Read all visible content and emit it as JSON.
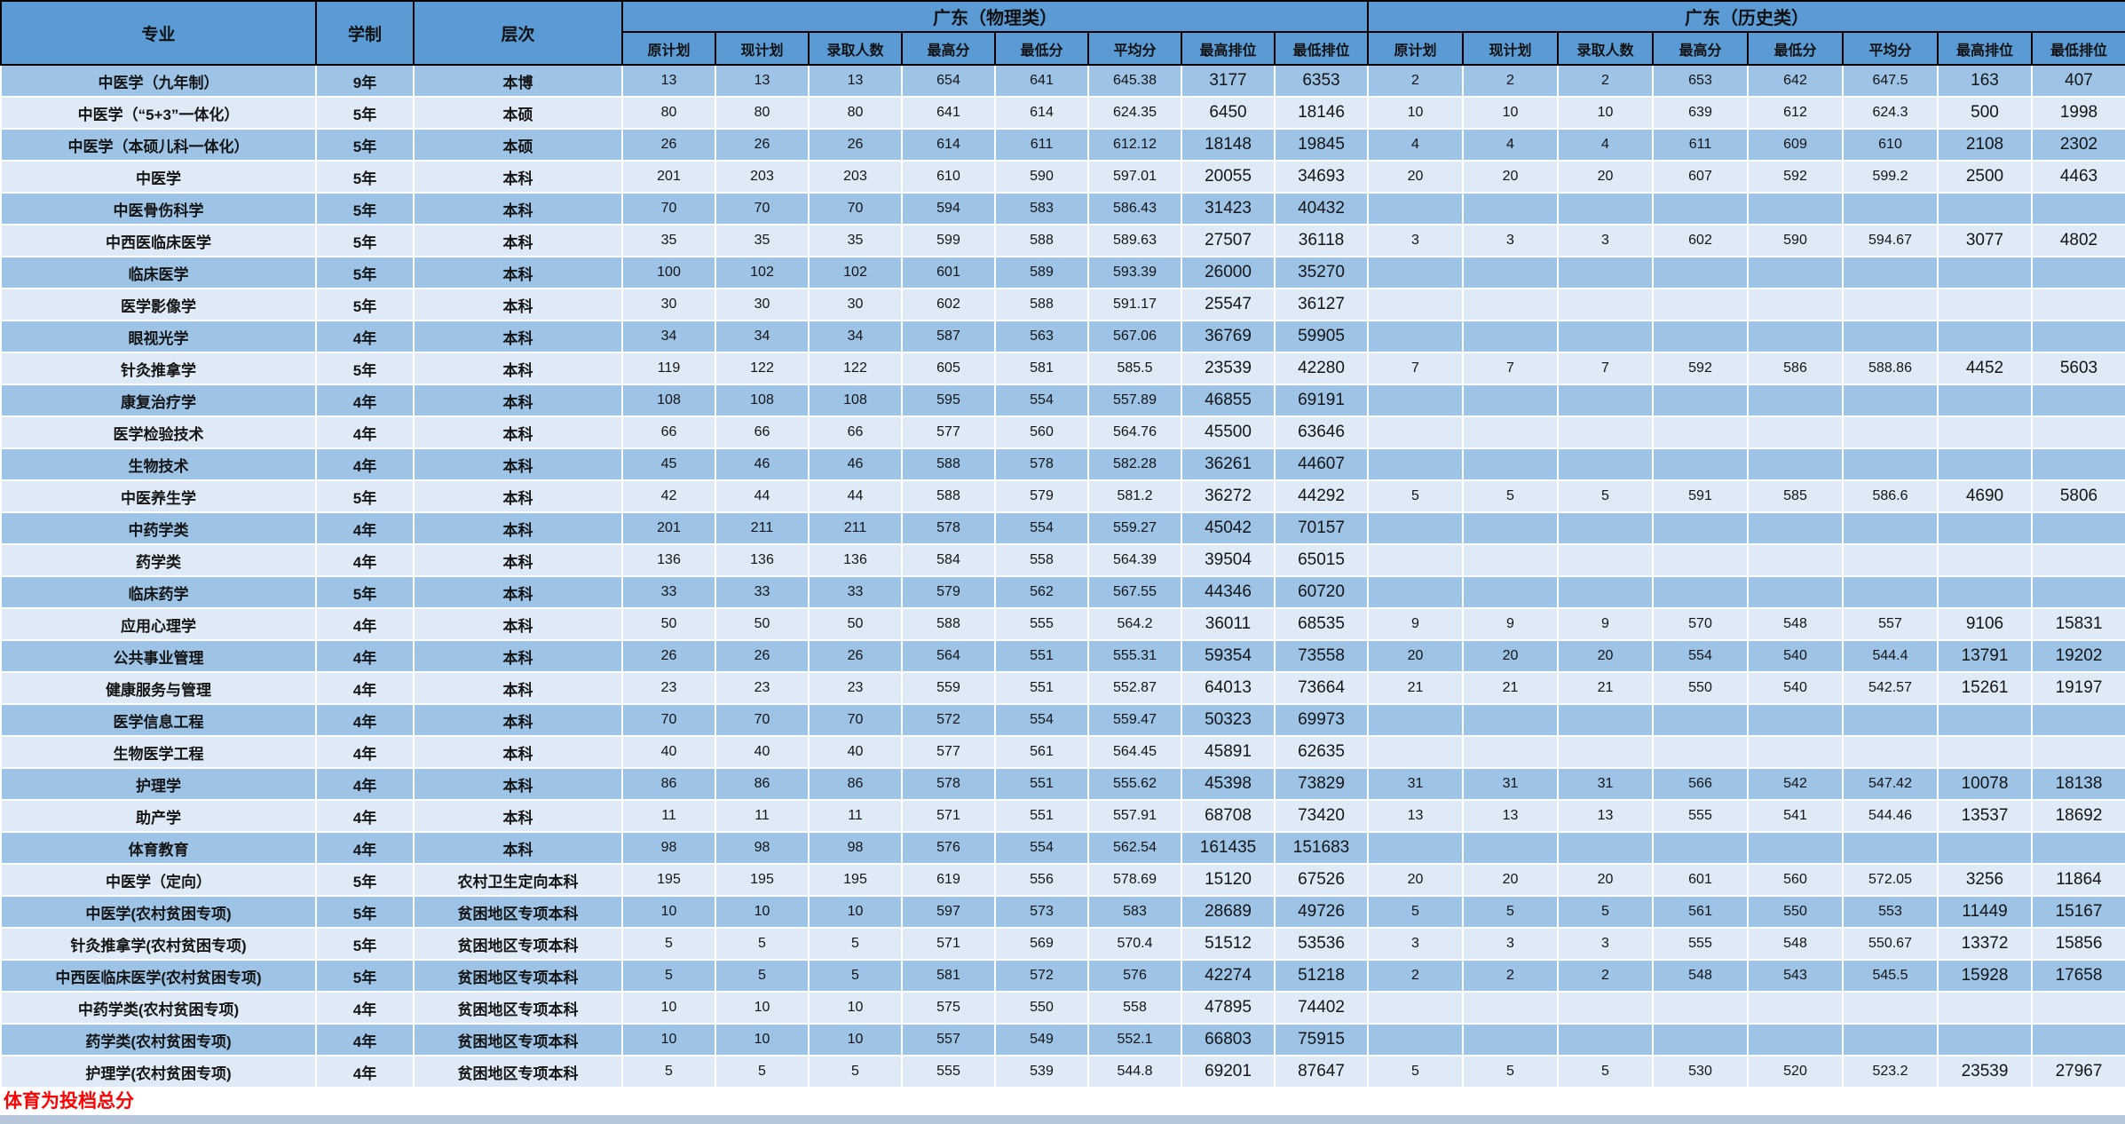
{
  "page": {
    "footnote": "体育为投档总分"
  },
  "colors": {
    "header_bg": "#5b9bd5",
    "row_dark": "#9dc3e6",
    "row_light": "#deebf7",
    "footnote_red": "#ff0000",
    "bottom_strip": "#b7c7da",
    "border_black": "#000000",
    "grid_white": "#ffffff"
  },
  "table": {
    "headers": {
      "major": "专业",
      "duration": "学制",
      "level": "层次",
      "group_physics": "广东（物理类）",
      "group_history": "广东（历史类）"
    },
    "sub_headers": [
      "原计划",
      "现计划",
      "录取人数",
      "最高分",
      "最低分",
      "平均分",
      "最高排位",
      "最低排位"
    ],
    "rows": [
      {
        "major": "中医学（九年制）",
        "duration": "9年",
        "level": "本博",
        "physics": [
          "13",
          "13",
          "13",
          "654",
          "641",
          "645.38",
          "3177",
          "6353"
        ],
        "history": [
          "2",
          "2",
          "2",
          "653",
          "642",
          "647.5",
          "163",
          "407"
        ]
      },
      {
        "major": "中医学（“5+3”一体化）",
        "duration": "5年",
        "level": "本硕",
        "physics": [
          "80",
          "80",
          "80",
          "641",
          "614",
          "624.35",
          "6450",
          "18146"
        ],
        "history": [
          "10",
          "10",
          "10",
          "639",
          "612",
          "624.3",
          "500",
          "1998"
        ]
      },
      {
        "major": "中医学（本硕儿科一体化）",
        "duration": "5年",
        "level": "本硕",
        "physics": [
          "26",
          "26",
          "26",
          "614",
          "611",
          "612.12",
          "18148",
          "19845"
        ],
        "history": [
          "4",
          "4",
          "4",
          "611",
          "609",
          "610",
          "2108",
          "2302"
        ]
      },
      {
        "major": "中医学",
        "duration": "5年",
        "level": "本科",
        "physics": [
          "201",
          "203",
          "203",
          "610",
          "590",
          "597.01",
          "20055",
          "34693"
        ],
        "history": [
          "20",
          "20",
          "20",
          "607",
          "592",
          "599.2",
          "2500",
          "4463"
        ]
      },
      {
        "major": "中医骨伤科学",
        "duration": "5年",
        "level": "本科",
        "physics": [
          "70",
          "70",
          "70",
          "594",
          "583",
          "586.43",
          "31423",
          "40432"
        ],
        "history": [
          "",
          "",
          "",
          "",
          "",
          "",
          "",
          ""
        ]
      },
      {
        "major": "中西医临床医学",
        "duration": "5年",
        "level": "本科",
        "physics": [
          "35",
          "35",
          "35",
          "599",
          "588",
          "589.63",
          "27507",
          "36118"
        ],
        "history": [
          "3",
          "3",
          "3",
          "602",
          "590",
          "594.67",
          "3077",
          "4802"
        ]
      },
      {
        "major": "临床医学",
        "duration": "5年",
        "level": "本科",
        "physics": [
          "100",
          "102",
          "102",
          "601",
          "589",
          "593.39",
          "26000",
          "35270"
        ],
        "history": [
          "",
          "",
          "",
          "",
          "",
          "",
          "",
          ""
        ]
      },
      {
        "major": "医学影像学",
        "duration": "5年",
        "level": "本科",
        "physics": [
          "30",
          "30",
          "30",
          "602",
          "588",
          "591.17",
          "25547",
          "36127"
        ],
        "history": [
          "",
          "",
          "",
          "",
          "",
          "",
          "",
          ""
        ]
      },
      {
        "major": "眼视光学",
        "duration": "4年",
        "level": "本科",
        "physics": [
          "34",
          "34",
          "34",
          "587",
          "563",
          "567.06",
          "36769",
          "59905"
        ],
        "history": [
          "",
          "",
          "",
          "",
          "",
          "",
          "",
          ""
        ]
      },
      {
        "major": "针灸推拿学",
        "duration": "5年",
        "level": "本科",
        "physics": [
          "119",
          "122",
          "122",
          "605",
          "581",
          "585.5",
          "23539",
          "42280"
        ],
        "history": [
          "7",
          "7",
          "7",
          "592",
          "586",
          "588.86",
          "4452",
          "5603"
        ]
      },
      {
        "major": "康复治疗学",
        "duration": "4年",
        "level": "本科",
        "physics": [
          "108",
          "108",
          "108",
          "595",
          "554",
          "557.89",
          "46855",
          "69191"
        ],
        "history": [
          "",
          "",
          "",
          "",
          "",
          "",
          "",
          ""
        ]
      },
      {
        "major": "医学检验技术",
        "duration": "4年",
        "level": "本科",
        "physics": [
          "66",
          "66",
          "66",
          "577",
          "560",
          "564.76",
          "45500",
          "63646"
        ],
        "history": [
          "",
          "",
          "",
          "",
          "",
          "",
          "",
          ""
        ]
      },
      {
        "major": "生物技术",
        "duration": "4年",
        "level": "本科",
        "physics": [
          "45",
          "46",
          "46",
          "588",
          "578",
          "582.28",
          "36261",
          "44607"
        ],
        "history": [
          "",
          "",
          "",
          "",
          "",
          "",
          "",
          ""
        ]
      },
      {
        "major": "中医养生学",
        "duration": "5年",
        "level": "本科",
        "physics": [
          "42",
          "44",
          "44",
          "588",
          "579",
          "581.2",
          "36272",
          "44292"
        ],
        "history": [
          "5",
          "5",
          "5",
          "591",
          "585",
          "586.6",
          "4690",
          "5806"
        ]
      },
      {
        "major": "中药学类",
        "duration": "4年",
        "level": "本科",
        "physics": [
          "201",
          "211",
          "211",
          "578",
          "554",
          "559.27",
          "45042",
          "70157"
        ],
        "history": [
          "",
          "",
          "",
          "",
          "",
          "",
          "",
          ""
        ]
      },
      {
        "major": "药学类",
        "duration": "4年",
        "level": "本科",
        "physics": [
          "136",
          "136",
          "136",
          "584",
          "558",
          "564.39",
          "39504",
          "65015"
        ],
        "history": [
          "",
          "",
          "",
          "",
          "",
          "",
          "",
          ""
        ]
      },
      {
        "major": "临床药学",
        "duration": "5年",
        "level": "本科",
        "physics": [
          "33",
          "33",
          "33",
          "579",
          "562",
          "567.55",
          "44346",
          "60720"
        ],
        "history": [
          "",
          "",
          "",
          "",
          "",
          "",
          "",
          ""
        ]
      },
      {
        "major": "应用心理学",
        "duration": "4年",
        "level": "本科",
        "physics": [
          "50",
          "50",
          "50",
          "588",
          "555",
          "564.2",
          "36011",
          "68535"
        ],
        "history": [
          "9",
          "9",
          "9",
          "570",
          "548",
          "557",
          "9106",
          "15831"
        ]
      },
      {
        "major": "公共事业管理",
        "duration": "4年",
        "level": "本科",
        "physics": [
          "26",
          "26",
          "26",
          "564",
          "551",
          "555.31",
          "59354",
          "73558"
        ],
        "history": [
          "20",
          "20",
          "20",
          "554",
          "540",
          "544.4",
          "13791",
          "19202"
        ]
      },
      {
        "major": "健康服务与管理",
        "duration": "4年",
        "level": "本科",
        "physics": [
          "23",
          "23",
          "23",
          "559",
          "551",
          "552.87",
          "64013",
          "73664"
        ],
        "history": [
          "21",
          "21",
          "21",
          "550",
          "540",
          "542.57",
          "15261",
          "19197"
        ]
      },
      {
        "major": "医学信息工程",
        "duration": "4年",
        "level": "本科",
        "physics": [
          "70",
          "70",
          "70",
          "572",
          "554",
          "559.47",
          "50323",
          "69973"
        ],
        "history": [
          "",
          "",
          "",
          "",
          "",
          "",
          "",
          ""
        ]
      },
      {
        "major": "生物医学工程",
        "duration": "4年",
        "level": "本科",
        "physics": [
          "40",
          "40",
          "40",
          "577",
          "561",
          "564.45",
          "45891",
          "62635"
        ],
        "history": [
          "",
          "",
          "",
          "",
          "",
          "",
          "",
          ""
        ]
      },
      {
        "major": "护理学",
        "duration": "4年",
        "level": "本科",
        "physics": [
          "86",
          "86",
          "86",
          "578",
          "551",
          "555.62",
          "45398",
          "73829"
        ],
        "history": [
          "31",
          "31",
          "31",
          "566",
          "542",
          "547.42",
          "10078",
          "18138"
        ]
      },
      {
        "major": "助产学",
        "duration": "4年",
        "level": "本科",
        "physics": [
          "11",
          "11",
          "11",
          "571",
          "551",
          "557.91",
          "68708",
          "73420"
        ],
        "history": [
          "13",
          "13",
          "13",
          "555",
          "541",
          "544.46",
          "13537",
          "18692"
        ]
      },
      {
        "major": "体育教育",
        "duration": "4年",
        "level": "本科",
        "physics": [
          "98",
          "98",
          "98",
          "576",
          "554",
          "562.54",
          "161435",
          "151683"
        ],
        "history": [
          "",
          "",
          "",
          "",
          "",
          "",
          "",
          ""
        ]
      },
      {
        "major": "中医学（定向）",
        "duration": "5年",
        "level": "农村卫生定向本科",
        "physics": [
          "195",
          "195",
          "195",
          "619",
          "556",
          "578.69",
          "15120",
          "67526"
        ],
        "history": [
          "20",
          "20",
          "20",
          "601",
          "560",
          "572.05",
          "3256",
          "11864"
        ]
      },
      {
        "major": "中医学(农村贫困专项)",
        "duration": "5年",
        "level": "贫困地区专项本科",
        "physics": [
          "10",
          "10",
          "10",
          "597",
          "573",
          "583",
          "28689",
          "49726"
        ],
        "history": [
          "5",
          "5",
          "5",
          "561",
          "550",
          "553",
          "11449",
          "15167"
        ]
      },
      {
        "major": "针灸推拿学(农村贫困专项)",
        "duration": "5年",
        "level": "贫困地区专项本科",
        "physics": [
          "5",
          "5",
          "5",
          "571",
          "569",
          "570.4",
          "51512",
          "53536"
        ],
        "history": [
          "3",
          "3",
          "3",
          "555",
          "548",
          "550.67",
          "13372",
          "15856"
        ]
      },
      {
        "major": "中西医临床医学(农村贫困专项)",
        "duration": "5年",
        "level": "贫困地区专项本科",
        "physics": [
          "5",
          "5",
          "5",
          "581",
          "572",
          "576",
          "42274",
          "51218"
        ],
        "history": [
          "2",
          "2",
          "2",
          "548",
          "543",
          "545.5",
          "15928",
          "17658"
        ]
      },
      {
        "major": "中药学类(农村贫困专项)",
        "duration": "4年",
        "level": "贫困地区专项本科",
        "physics": [
          "10",
          "10",
          "10",
          "575",
          "550",
          "558",
          "47895",
          "74402"
        ],
        "history": [
          "",
          "",
          "",
          "",
          "",
          "",
          "",
          ""
        ]
      },
      {
        "major": "药学类(农村贫困专项)",
        "duration": "4年",
        "level": "贫困地区专项本科",
        "physics": [
          "10",
          "10",
          "10",
          "557",
          "549",
          "552.1",
          "66803",
          "75915"
        ],
        "history": [
          "",
          "",
          "",
          "",
          "",
          "",
          "",
          ""
        ]
      },
      {
        "major": "护理学(农村贫困专项)",
        "duration": "4年",
        "level": "贫困地区专项本科",
        "physics": [
          "5",
          "5",
          "5",
          "555",
          "539",
          "544.8",
          "69201",
          "87647"
        ],
        "history": [
          "5",
          "5",
          "5",
          "530",
          "520",
          "523.2",
          "23539",
          "27967"
        ]
      }
    ]
  }
}
